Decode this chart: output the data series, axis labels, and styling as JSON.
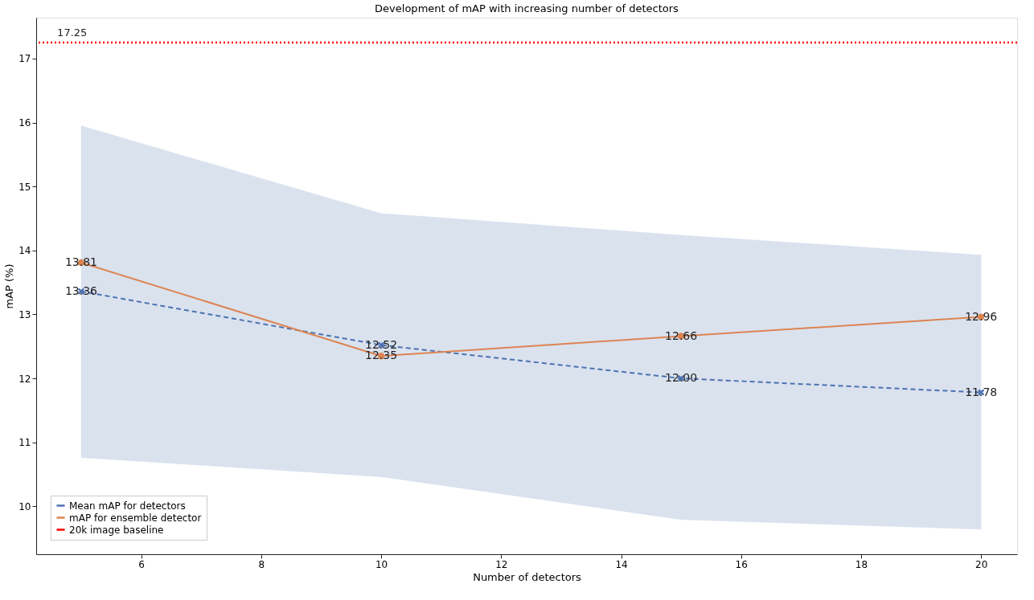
{
  "chart_data": {
    "type": "line",
    "title": "Development of mAP with increasing number of detectors",
    "xlabel": "Number of detectors",
    "ylabel": "mAP (%)",
    "x": [
      5,
      10,
      15,
      20
    ],
    "series": [
      {
        "name": "Mean mAP for detectors",
        "color": "#4c72b0",
        "values": [
          13.36,
          12.52,
          12.0,
          11.78
        ],
        "lower": [
          10.76,
          10.46,
          9.79,
          9.64
        ],
        "upper": [
          15.95,
          14.58,
          14.24,
          13.93
        ],
        "marker": "cross",
        "line_style": "dashed",
        "value_labels": [
          "13.36",
          "12.52",
          "12.00",
          "11.78"
        ]
      },
      {
        "name": "mAP for ensemble detector",
        "color": "#dd8452",
        "values": [
          13.81,
          12.35,
          12.66,
          12.96
        ],
        "marker": "circle",
        "line_style": "solid",
        "value_labels": [
          "13.81",
          "12.35",
          "12.66",
          "12.96"
        ]
      }
    ],
    "ref_lines": [
      {
        "axis": "y",
        "value": 17.25,
        "label": "20k image baseline",
        "color": "#ff0000",
        "line_style": "dotted"
      }
    ],
    "annotations": [
      {
        "text": "17.25",
        "x": 4.6,
        "y": 17.25
      }
    ],
    "xlim": [
      4.25,
      20.6
    ],
    "xticks": [
      6,
      8,
      10,
      12,
      14,
      16,
      18,
      20
    ],
    "ylim": [
      9.25,
      17.64
    ],
    "yticks": [
      10,
      11,
      12,
      13,
      14,
      15,
      16,
      17
    ],
    "grid": false,
    "legend": "bottom left"
  }
}
